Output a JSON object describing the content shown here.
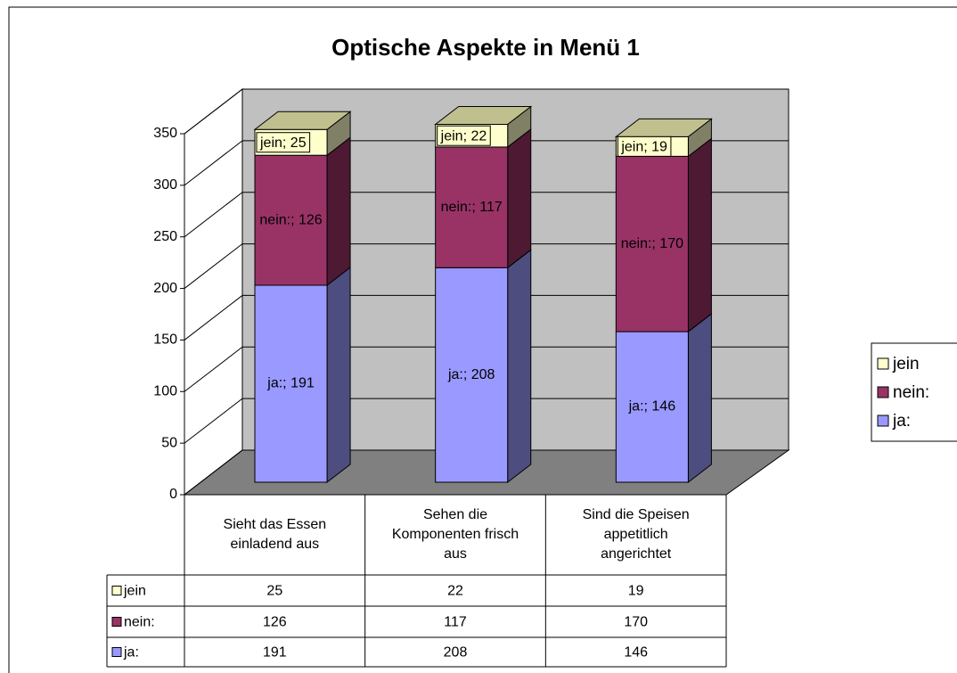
{
  "chart_data": {
    "type": "bar3d_stacked",
    "title": "Optische Aspekte in Menü 1",
    "categories": [
      "Sieht das Essen einladend aus",
      "Sehen die Komponenten frisch aus",
      "Sind die Speisen appetitlich angerichtet"
    ],
    "series": [
      {
        "name": "ja:",
        "color": "#9999ff",
        "side": "#4d4d80",
        "values": [
          191,
          208,
          146
        ],
        "value_labels": [
          "ja:; 191",
          "ja:; 208",
          "ja:; 146"
        ]
      },
      {
        "name": "nein:",
        "color": "#993366",
        "side": "#4d1933",
        "values": [
          126,
          117,
          170
        ],
        "value_labels": [
          "nein:; 126",
          "nein:; 117",
          "nein:; 170"
        ]
      },
      {
        "name": "jein",
        "color": "#ffffcc",
        "side": "#808066",
        "values": [
          25,
          22,
          19
        ],
        "value_labels": [
          "jein; 25",
          "jein; 22",
          "jein; 19"
        ]
      }
    ],
    "ylim": [
      0,
      350
    ],
    "yticks": [
      0,
      50,
      100,
      150,
      200,
      250,
      300,
      350
    ],
    "grid": true,
    "legend": "right",
    "data_table": true
  }
}
